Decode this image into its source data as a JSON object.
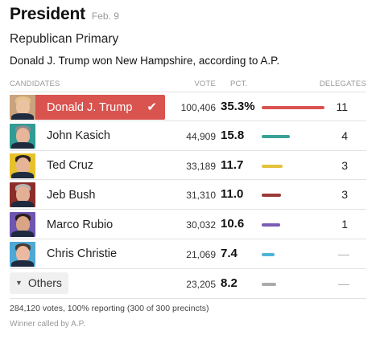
{
  "header": {
    "title": "President",
    "date": "Feb. 9"
  },
  "subtitle": "Republican Primary",
  "headline": "Donald J. Trump won New Hampshire, according to A.P.",
  "columns": {
    "candidates": "CANDIDATES",
    "vote": "VOTE",
    "pct": "PCT.",
    "delegates": "DELEGATES"
  },
  "rows": [
    {
      "name": "Donald J. Trump",
      "votes": "100,406",
      "pct": "35.3%",
      "pct_value": 35.3,
      "delegates": "11",
      "color": "#d9534f",
      "winner": true,
      "check": "✔",
      "avatar_bg": "#c9a27e",
      "hair": "#e3c38a",
      "skin": "#ecc3a2"
    },
    {
      "name": "John Kasich",
      "votes": "44,909",
      "pct": "15.8",
      "pct_value": 15.8,
      "delegates": "4",
      "color": "#3aa198",
      "winner": false,
      "avatar_bg": "#2f9c96",
      "hair": "#8a8a8a",
      "skin": "#e6b59a"
    },
    {
      "name": "Ted Cruz",
      "votes": "33,189",
      "pct": "11.7",
      "pct_value": 11.7,
      "delegates": "3",
      "color": "#e3c33d",
      "winner": false,
      "avatar_bg": "#e6c22a",
      "hair": "#2d2220",
      "skin": "#e6b598"
    },
    {
      "name": "Jeb Bush",
      "votes": "31,310",
      "pct": "11.0",
      "pct_value": 11.0,
      "delegates": "3",
      "color": "#9b3a36",
      "winner": false,
      "avatar_bg": "#8d2d2a",
      "hair": "#b7b2ad",
      "skin": "#e3b096"
    },
    {
      "name": "Marco Rubio",
      "votes": "30,032",
      "pct": "10.6",
      "pct_value": 10.6,
      "delegates": "1",
      "color": "#7a5cb5",
      "winner": false,
      "avatar_bg": "#6f56b0",
      "hair": "#2b1d18",
      "skin": "#d9a585"
    },
    {
      "name": "Chris Christie",
      "votes": "21,069",
      "pct": "7.4",
      "pct_value": 7.4,
      "delegates": "—",
      "color": "#4fb5d6",
      "winner": false,
      "avatar_bg": "#4ea9d6",
      "hair": "#4a3a32",
      "skin": "#eab9a0"
    },
    {
      "name": "Others",
      "votes": "23,205",
      "pct": "8.2",
      "pct_value": 8.2,
      "delegates": "—",
      "color": "#aaaaaa",
      "winner": false,
      "others": true,
      "toggle_icon": "▼"
    }
  ],
  "footer": {
    "reporting": "284,120 votes, 100% reporting (300 of 300 precincts)",
    "called_by": "Winner called by A.P."
  }
}
